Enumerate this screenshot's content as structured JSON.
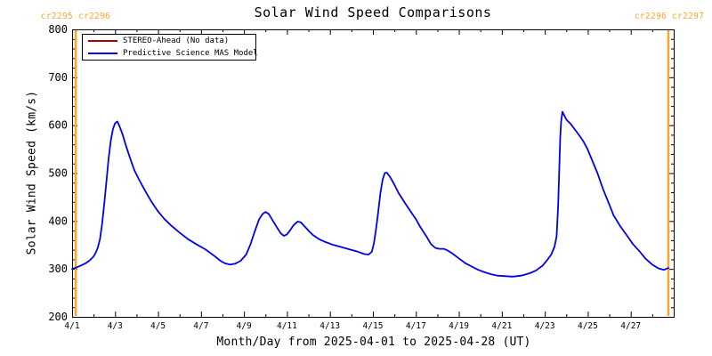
{
  "header": {
    "title": "Solar Wind Speed Comparisons",
    "cr_label_left": "cr2295 cr2296",
    "cr_label_right": "cr2296 cr2297"
  },
  "legend": {
    "items": [
      {
        "label": "STEREO-Ahead (No data)",
        "color": "#aa0000"
      },
      {
        "label": "Predictive Science MAS Model",
        "color": "#0000ee"
      }
    ]
  },
  "colors": {
    "axis": "#000000",
    "boundary_orange": "#ffa428",
    "mas_blue": "#0000ee",
    "stereo_red": "#aa0000",
    "background": "#ffffff"
  },
  "chart_data": {
    "type": "line",
    "title": "Solar Wind Speed Comparisons",
    "xlabel": "Month/Day from 2025-04-01 to 2025-04-28 (UT)",
    "ylabel": "Solar Wind Speed (km/s)",
    "grid": false,
    "legend_position": "top-left-inside",
    "x_axis": {
      "unit": "April day (UT)",
      "min_day": 1,
      "max_day": 29,
      "major_tick_days": [
        1,
        3,
        5,
        7,
        9,
        11,
        13,
        15,
        17,
        19,
        21,
        23,
        25,
        27,
        29
      ],
      "minor_tick_days": [
        2,
        4,
        6,
        8,
        10,
        12,
        14,
        16,
        18,
        20,
        22,
        24,
        26,
        28
      ],
      "tick_labels": [
        {
          "day": 1,
          "text": "4/1"
        },
        {
          "day": 3,
          "text": "4/3"
        },
        {
          "day": 5,
          "text": "4/5"
        },
        {
          "day": 7,
          "text": "4/7"
        },
        {
          "day": 9,
          "text": "4/9"
        },
        {
          "day": 11,
          "text": "4/11"
        },
        {
          "day": 13,
          "text": "4/13"
        },
        {
          "day": 15,
          "text": "4/15"
        },
        {
          "day": 17,
          "text": "4/17"
        },
        {
          "day": 19,
          "text": "4/19"
        },
        {
          "day": 21,
          "text": "4/21"
        },
        {
          "day": 23,
          "text": "4/23"
        },
        {
          "day": 25,
          "text": "4/25"
        },
        {
          "day": 27,
          "text": "4/27"
        }
      ]
    },
    "y_axis": {
      "min": 200,
      "max": 800,
      "major_ticks": [
        200,
        300,
        400,
        500,
        600,
        700,
        800
      ],
      "minor_step": 20,
      "tick_labels": [
        "200",
        "300",
        "400",
        "500",
        "600",
        "700",
        "800"
      ]
    },
    "carrington_boundaries": {
      "color": "#ffa428",
      "days": [
        1.17,
        28.75
      ],
      "labels": [
        "cr2295 cr2296",
        "cr2296 cr2297"
      ]
    },
    "series": [
      {
        "name": "STEREO-Ahead (No data)",
        "color": "#aa0000",
        "points": []
      },
      {
        "name": "Predictive Science MAS Model",
        "color": "#0000ee",
        "points": [
          [
            1.0,
            300
          ],
          [
            1.2,
            303
          ],
          [
            1.4,
            307
          ],
          [
            1.6,
            311
          ],
          [
            1.8,
            317
          ],
          [
            2.0,
            326
          ],
          [
            2.1,
            334
          ],
          [
            2.2,
            345
          ],
          [
            2.3,
            363
          ],
          [
            2.4,
            395
          ],
          [
            2.5,
            437
          ],
          [
            2.6,
            483
          ],
          [
            2.7,
            530
          ],
          [
            2.8,
            568
          ],
          [
            2.9,
            592
          ],
          [
            3.0,
            604
          ],
          [
            3.1,
            608
          ],
          [
            3.2,
            599
          ],
          [
            3.35,
            581
          ],
          [
            3.5,
            558
          ],
          [
            3.7,
            531
          ],
          [
            3.9,
            506
          ],
          [
            4.1,
            488
          ],
          [
            4.4,
            463
          ],
          [
            4.7,
            440
          ],
          [
            5.0,
            420
          ],
          [
            5.3,
            404
          ],
          [
            5.6,
            391
          ],
          [
            6.0,
            376
          ],
          [
            6.4,
            362
          ],
          [
            6.8,
            351
          ],
          [
            7.2,
            341
          ],
          [
            7.6,
            328
          ],
          [
            7.9,
            317
          ],
          [
            8.1,
            312
          ],
          [
            8.35,
            309
          ],
          [
            8.6,
            311
          ],
          [
            8.85,
            317
          ],
          [
            9.1,
            330
          ],
          [
            9.3,
            351
          ],
          [
            9.5,
            378
          ],
          [
            9.7,
            403
          ],
          [
            9.85,
            414
          ],
          [
            10.0,
            419
          ],
          [
            10.15,
            415
          ],
          [
            10.3,
            404
          ],
          [
            10.5,
            389
          ],
          [
            10.7,
            375
          ],
          [
            10.85,
            369
          ],
          [
            11.0,
            372
          ],
          [
            11.15,
            381
          ],
          [
            11.3,
            391
          ],
          [
            11.5,
            399
          ],
          [
            11.65,
            397
          ],
          [
            11.8,
            390
          ],
          [
            12.0,
            380
          ],
          [
            12.2,
            371
          ],
          [
            12.5,
            362
          ],
          [
            12.8,
            356
          ],
          [
            13.1,
            351
          ],
          [
            13.5,
            346
          ],
          [
            13.9,
            341
          ],
          [
            14.3,
            336
          ],
          [
            14.6,
            331
          ],
          [
            14.8,
            330
          ],
          [
            14.95,
            336
          ],
          [
            15.05,
            354
          ],
          [
            15.15,
            384
          ],
          [
            15.25,
            420
          ],
          [
            15.35,
            458
          ],
          [
            15.45,
            486
          ],
          [
            15.55,
            500
          ],
          [
            15.65,
            501
          ],
          [
            15.8,
            492
          ],
          [
            16.0,
            476
          ],
          [
            16.2,
            458
          ],
          [
            16.5,
            437
          ],
          [
            16.8,
            417
          ],
          [
            17.0,
            404
          ],
          [
            17.2,
            388
          ],
          [
            17.5,
            367
          ],
          [
            17.7,
            352
          ],
          [
            17.9,
            344
          ],
          [
            18.1,
            342
          ],
          [
            18.3,
            342
          ],
          [
            18.5,
            338
          ],
          [
            18.7,
            332
          ],
          [
            19.0,
            322
          ],
          [
            19.3,
            312
          ],
          [
            19.6,
            305
          ],
          [
            19.9,
            298
          ],
          [
            20.2,
            293
          ],
          [
            20.5,
            289
          ],
          [
            20.8,
            286
          ],
          [
            21.1,
            285
          ],
          [
            21.5,
            284
          ],
          [
            21.9,
            286
          ],
          [
            22.3,
            291
          ],
          [
            22.6,
            297
          ],
          [
            22.9,
            307
          ],
          [
            23.1,
            318
          ],
          [
            23.3,
            330
          ],
          [
            23.45,
            346
          ],
          [
            23.55,
            368
          ],
          [
            23.62,
            430
          ],
          [
            23.68,
            520
          ],
          [
            23.72,
            575
          ],
          [
            23.76,
            608
          ],
          [
            23.82,
            628
          ],
          [
            23.9,
            621
          ],
          [
            24.0,
            612
          ],
          [
            24.2,
            603
          ],
          [
            24.4,
            591
          ],
          [
            24.6,
            579
          ],
          [
            24.8,
            566
          ],
          [
            25.0,
            549
          ],
          [
            25.2,
            527
          ],
          [
            25.45,
            500
          ],
          [
            25.7,
            468
          ],
          [
            25.95,
            440
          ],
          [
            26.2,
            412
          ],
          [
            26.5,
            390
          ],
          [
            26.8,
            371
          ],
          [
            27.1,
            352
          ],
          [
            27.4,
            337
          ],
          [
            27.7,
            321
          ],
          [
            28.0,
            309
          ],
          [
            28.3,
            301
          ],
          [
            28.55,
            298
          ],
          [
            28.75,
            302
          ]
        ]
      }
    ]
  }
}
